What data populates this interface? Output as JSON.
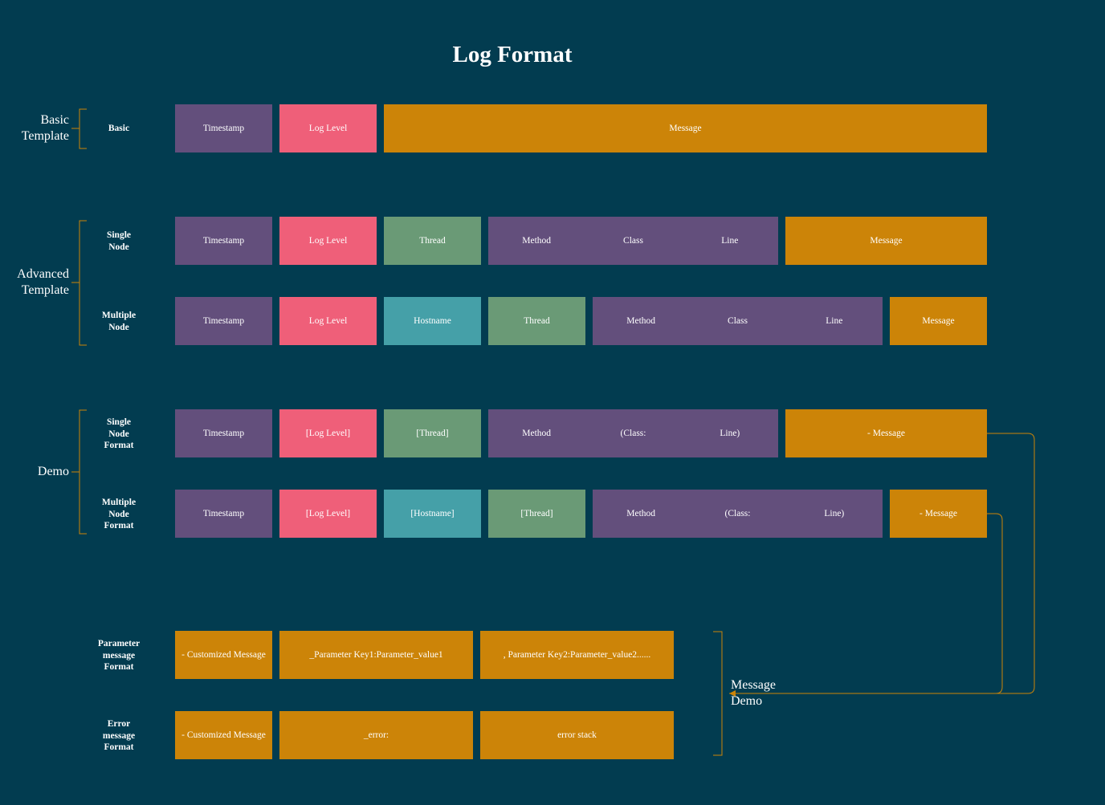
{
  "title": "Log Format",
  "colors": {
    "background": "#023c50",
    "timestamp": "#634f7c",
    "log_level": "#ef5f79",
    "thread": "#6a9a76",
    "hostname": "#45a0a8",
    "message": "#cc8408",
    "bracket": "#cc8408",
    "connector": "#cc8408"
  },
  "groups": {
    "basic_template": "Basic\nTemplate",
    "advanced_template": "Advanced\nTemplate",
    "demo": "Demo",
    "message_demo": "Message\nDemo"
  },
  "rows": {
    "basic": {
      "label": "Basic",
      "timestamp": "Timestamp",
      "log_level": "Log Level",
      "message": "Message"
    },
    "single_node": {
      "label": "Single\nNode",
      "timestamp": "Timestamp",
      "log_level": "Log Level",
      "thread": "Thread",
      "method": "Method",
      "class": "Class",
      "line": "Line",
      "message": "Message"
    },
    "multiple_node": {
      "label": "Multiple\nNode",
      "timestamp": "Timestamp",
      "log_level": "Log Level",
      "hostname": "Hostname",
      "thread": "Thread",
      "method": "Method",
      "class": "Class",
      "line": "Line",
      "message": "Message"
    },
    "single_node_format": {
      "label": "Single\nNode\nFormat",
      "timestamp": "Timestamp",
      "log_level": "[Log Level]",
      "thread": "[Thread]",
      "method": "Method",
      "class": "(Class:",
      "line": "Line)",
      "message": "- Message"
    },
    "multiple_node_format": {
      "label": "Multiple\nNode\nFormat",
      "timestamp": "Timestamp",
      "log_level": "[Log Level]",
      "hostname": "[Hostname]",
      "thread": "[Thread]",
      "method": "Method",
      "class": "(Class:",
      "line": "Line)",
      "message": "- Message"
    },
    "parameter_message_format": {
      "label": "Parameter\nmessage\nFormat",
      "col1": "- Customized Message",
      "col2": "_Parameter Key1:Parameter_value1",
      "col3": ", Parameter Key2:Parameter_value2......"
    },
    "error_message_format": {
      "label": "Error\nmessage\nFormat",
      "col1": "- Customized Message",
      "col2": "_error:",
      "col3": "error stack"
    }
  }
}
